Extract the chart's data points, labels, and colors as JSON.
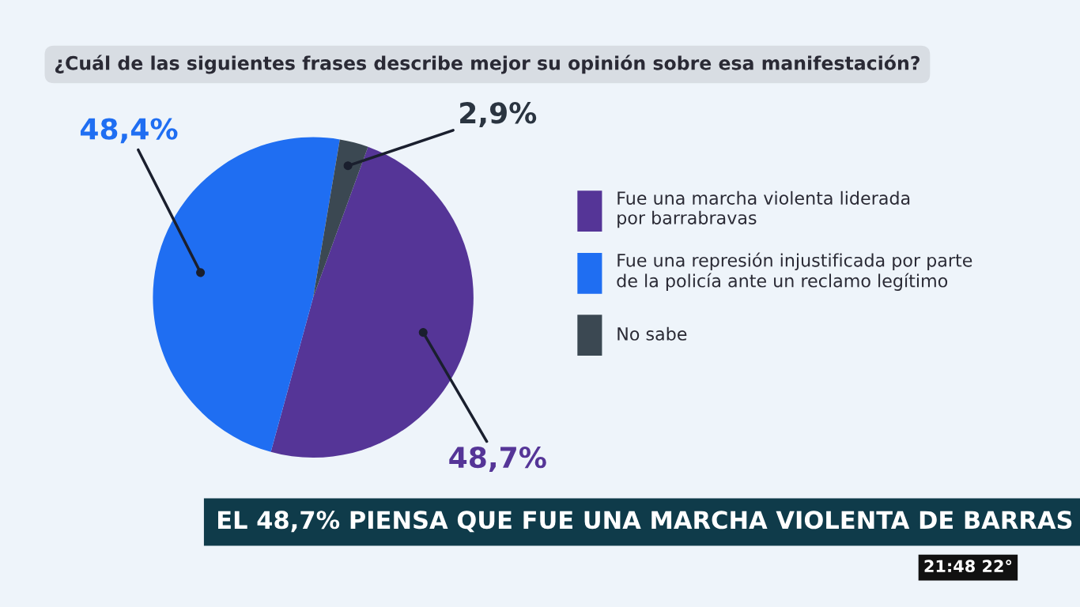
{
  "chart_data": {
    "type": "pie",
    "title": "¿Cuál de las siguientes frases describe mejor su opinión sobre esa manifestación?",
    "categories": [
      "Fue una marcha violenta liderada\npor barrabravas",
      "Fue una represión injustificada por parte\nde la policía ante un reclamo legítimo",
      "No sabe"
    ],
    "values": [
      48.7,
      48.4,
      2.9
    ],
    "value_labels": [
      "48,7%",
      "48,4%",
      "2,9%"
    ],
    "colors": [
      "#553597",
      "#1f6ef2",
      "#3b4852"
    ],
    "legend": "right",
    "annotations": [
      "EL 48,7% PIENSA QUE FUE UNA MARCHA VIOLENTA DE BARRAS",
      "21:48 22°"
    ]
  }
}
